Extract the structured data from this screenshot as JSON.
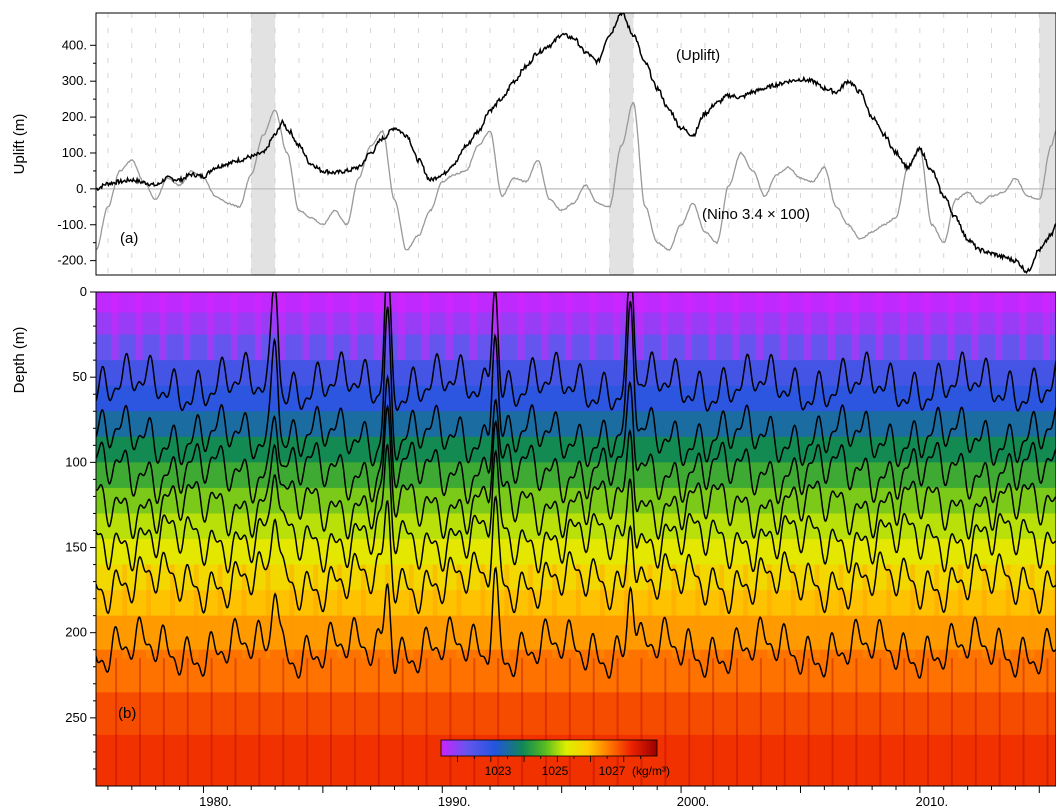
{
  "chart_data": [
    {
      "type": "line",
      "panel_label": "(a)",
      "ylabel": "Uplift  (m)",
      "ylim": [
        -240,
        490
      ],
      "yticks": [
        -200,
        -100,
        0,
        100,
        200,
        300,
        400
      ],
      "ytick_labels": [
        "-200.",
        "-100.",
        "0.",
        "100.",
        "200.",
        "300.",
        "400."
      ],
      "xlim": [
        1975.5,
        2015.7
      ],
      "shaded_periods": [
        [
          1982.0,
          1983.0
        ],
        [
          1997.0,
          1998.0
        ],
        [
          2015.0,
          2015.7
        ]
      ],
      "zero_line": true,
      "series": [
        {
          "name": "(Uplift)",
          "color": "#000000",
          "x": [
            1975.5,
            1976.0,
            1976.5,
            1977.0,
            1977.5,
            1978.0,
            1978.5,
            1979.0,
            1979.5,
            1980.0,
            1980.5,
            1981.0,
            1981.5,
            1982.0,
            1982.5,
            1983.0,
            1983.3,
            1983.6,
            1984.0,
            1984.5,
            1985.0,
            1985.5,
            1986.0,
            1986.5,
            1987.0,
            1987.5,
            1988.0,
            1988.5,
            1989.0,
            1989.5,
            1990.0,
            1990.5,
            1991.0,
            1991.5,
            1992.0,
            1992.5,
            1993.0,
            1993.5,
            1994.0,
            1994.5,
            1995.0,
            1995.5,
            1996.0,
            1996.5,
            1997.0,
            1997.5,
            1998.0,
            1998.5,
            1999.0,
            1999.5,
            2000.0,
            2000.5,
            2001.0,
            2001.5,
            2002.0,
            2002.5,
            2003.0,
            2003.5,
            2004.0,
            2004.5,
            2005.0,
            2005.5,
            2006.0,
            2006.5,
            2007.0,
            2007.5,
            2008.0,
            2008.5,
            2009.0,
            2009.5,
            2010.0,
            2010.5,
            2011.0,
            2011.5,
            2012.0,
            2012.5,
            2013.0,
            2013.5,
            2014.0,
            2014.5,
            2015.0,
            2015.5,
            2015.7
          ],
          "y": [
            0,
            15,
            20,
            25,
            18,
            10,
            30,
            25,
            40,
            35,
            60,
            70,
            80,
            90,
            100,
            150,
            185,
            160,
            120,
            70,
            50,
            45,
            50,
            60,
            100,
            140,
            170,
            150,
            80,
            25,
            40,
            70,
            120,
            160,
            220,
            250,
            300,
            340,
            380,
            400,
            430,
            420,
            380,
            355,
            430,
            490,
            430,
            350,
            280,
            220,
            170,
            150,
            210,
            240,
            260,
            255,
            270,
            280,
            290,
            300,
            305,
            300,
            280,
            270,
            300,
            270,
            200,
            150,
            100,
            60,
            110,
            50,
            -20,
            -80,
            -140,
            -170,
            -180,
            -190,
            -200,
            -230,
            -170,
            -130,
            -100
          ]
        },
        {
          "name": "(Nino 3.4 × 100)",
          "color": "#999999",
          "x": [
            1975.5,
            1976.0,
            1976.5,
            1977.0,
            1977.5,
            1978.0,
            1978.5,
            1979.0,
            1979.5,
            1980.0,
            1980.5,
            1981.0,
            1981.5,
            1982.0,
            1982.5,
            1983.0,
            1983.5,
            1984.0,
            1984.5,
            1985.0,
            1985.5,
            1986.0,
            1986.5,
            1987.0,
            1987.5,
            1988.0,
            1988.5,
            1989.0,
            1989.5,
            1990.0,
            1990.5,
            1991.0,
            1991.5,
            1992.0,
            1992.5,
            1993.0,
            1993.5,
            1994.0,
            1994.5,
            1995.0,
            1995.5,
            1996.0,
            1996.5,
            1997.0,
            1997.5,
            1998.0,
            1998.5,
            1999.0,
            1999.5,
            2000.0,
            2000.5,
            2001.0,
            2001.5,
            2002.0,
            2002.5,
            2003.0,
            2003.5,
            2004.0,
            2004.5,
            2005.0,
            2005.5,
            2006.0,
            2006.5,
            2007.0,
            2007.5,
            2008.0,
            2008.5,
            2009.0,
            2009.5,
            2010.0,
            2010.5,
            2011.0,
            2011.5,
            2012.0,
            2012.5,
            2013.0,
            2013.5,
            2014.0,
            2014.5,
            2015.0,
            2015.5,
            2015.7
          ],
          "y": [
            -170,
            -50,
            50,
            80,
            20,
            -30,
            30,
            10,
            50,
            30,
            -20,
            -40,
            -50,
            40,
            150,
            220,
            100,
            -60,
            -80,
            -100,
            -60,
            -100,
            30,
            120,
            160,
            -30,
            -170,
            -130,
            -60,
            20,
            40,
            50,
            120,
            160,
            -20,
            30,
            20,
            80,
            -30,
            -60,
            -40,
            10,
            -40,
            -50,
            120,
            240,
            -50,
            -150,
            -170,
            -100,
            -40,
            -120,
            -150,
            10,
            100,
            50,
            -20,
            40,
            60,
            30,
            20,
            60,
            -50,
            -100,
            -140,
            -120,
            -100,
            -80,
            60,
            110,
            -100,
            -150,
            -30,
            -10,
            -40,
            -20,
            -10,
            30,
            -20,
            -30,
            120,
            160
          ]
        }
      ]
    },
    {
      "type": "heatmap",
      "panel_label": "(b)",
      "ylabel": "Depth (m)",
      "ylim": [
        290,
        0
      ],
      "yticks": [
        0,
        50,
        100,
        150,
        200,
        250
      ],
      "ytick_labels": [
        "0",
        "50",
        "100",
        "150",
        "200",
        "250"
      ],
      "xlim": [
        1975.5,
        2015.7
      ],
      "xticks": [
        1980,
        1990,
        2000,
        2010
      ],
      "xtick_labels": [
        "1980.",
        "1990.",
        "2000.",
        "2010."
      ],
      "depth_band_edges": [
        0,
        12,
        25,
        40,
        55,
        70,
        85,
        100,
        115,
        130,
        145,
        160,
        175,
        190,
        210,
        235,
        260,
        290
      ],
      "band_density": [
        1021.6,
        1021.9,
        1022.3,
        1022.7,
        1023.0,
        1023.5,
        1024.0,
        1024.4,
        1024.8,
        1025.1,
        1025.4,
        1025.7,
        1026.0,
        1026.3,
        1026.6,
        1026.9,
        1027.1
      ],
      "contour_mean_depths": [
        55,
        85,
        105,
        125,
        145,
        170,
        210
      ],
      "el_nino_years": [
        1983,
        1987.7,
        1992.2,
        1997.9
      ],
      "colorbar": {
        "range": [
          1021.5,
          1028.0
        ],
        "tick_labels": [
          "1023",
          "1025",
          "1027"
        ],
        "unit_label": "(kg/m³)"
      }
    }
  ]
}
